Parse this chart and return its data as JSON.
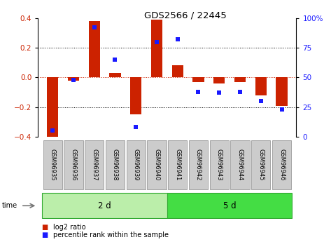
{
  "title": "GDS2566 / 22445",
  "samples": [
    "GSM96935",
    "GSM96936",
    "GSM96937",
    "GSM96938",
    "GSM96939",
    "GSM96940",
    "GSM96941",
    "GSM96942",
    "GSM96943",
    "GSM96944",
    "GSM96945",
    "GSM96946"
  ],
  "log2_ratio": [
    -0.4,
    -0.02,
    0.38,
    0.03,
    -0.25,
    0.39,
    0.08,
    -0.03,
    -0.04,
    -0.03,
    -0.12,
    -0.19
  ],
  "percentile_rank": [
    5,
    48,
    92,
    65,
    8,
    80,
    82,
    38,
    37,
    38,
    30,
    23
  ],
  "bar_color": "#cc2200",
  "dot_color": "#1a1aff",
  "group1_color": "#bbeeaa",
  "group2_color": "#44dd44",
  "group_edge_color": "#33aa33",
  "sample_box_color": "#cccccc",
  "sample_box_edge": "#999999",
  "groups": [
    {
      "label": "2 d",
      "start": 0,
      "end": 6
    },
    {
      "label": "5 d",
      "start": 6,
      "end": 12
    }
  ],
  "ylim": [
    -0.4,
    0.4
  ],
  "y2lim": [
    0,
    100
  ],
  "yticks": [
    -0.4,
    -0.2,
    0.0,
    0.2,
    0.4
  ],
  "y2ticks": [
    0,
    25,
    50,
    75,
    100
  ],
  "legend_bar_label": "log2 ratio",
  "legend_dot_label": "percentile rank within the sample",
  "bar_width": 0.55
}
